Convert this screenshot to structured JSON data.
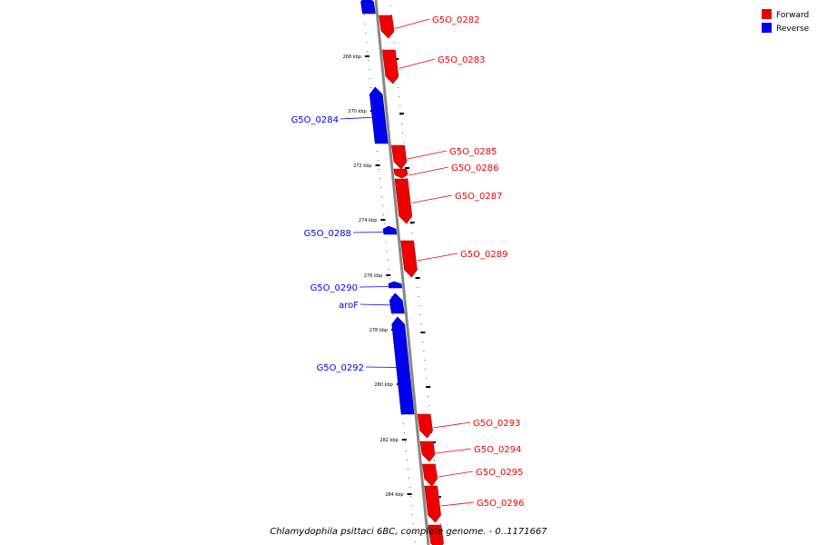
{
  "legend": {
    "items": [
      {
        "label": "Forward",
        "color": "#ee0000"
      },
      {
        "label": "Reverse",
        "color": "#0000ee"
      }
    ]
  },
  "caption": "Chlamydophila psittaci 6BC, complete genome. - 0..1171667",
  "colors": {
    "forward": "#ee0000",
    "reverse": "#0000ee",
    "backbone": "#888888"
  },
  "kbp_ticks": [
    {
      "label": "268 kbp",
      "kb": 268
    },
    {
      "label": "270 kbp",
      "kb": 270
    },
    {
      "label": "272 kbp",
      "kb": 272
    },
    {
      "label": "274 kbp",
      "kb": 274
    },
    {
      "label": "276 kbp",
      "kb": 276
    },
    {
      "label": "278 kbp",
      "kb": 278
    },
    {
      "label": "280 kbp",
      "kb": 280
    },
    {
      "label": "282 kbp",
      "kb": 282
    },
    {
      "label": "284 kbp",
      "kb": 284
    }
  ],
  "genes": [
    {
      "name": "",
      "strand": "reverse"
    },
    {
      "name": "G5O_0282",
      "strand": "forward"
    },
    {
      "name": "G5O_0283",
      "strand": "forward"
    },
    {
      "name": "G5O_0284",
      "strand": "reverse"
    },
    {
      "name": "G5O_0285",
      "strand": "forward"
    },
    {
      "name": "G5O_0286",
      "strand": "forward"
    },
    {
      "name": "G5O_0287",
      "strand": "forward"
    },
    {
      "name": "G5O_0288",
      "strand": "reverse"
    },
    {
      "name": "G5O_0289",
      "strand": "forward"
    },
    {
      "name": "G5O_0290",
      "strand": "reverse"
    },
    {
      "name": "aroF",
      "strand": "reverse"
    },
    {
      "name": "G5O_0292",
      "strand": "reverse"
    },
    {
      "name": "G5O_0293",
      "strand": "forward"
    },
    {
      "name": "G5O_0294",
      "strand": "forward"
    },
    {
      "name": "G5O_0295",
      "strand": "forward"
    },
    {
      "name": "G5O_0296",
      "strand": "forward"
    },
    {
      "name": "",
      "strand": "forward"
    }
  ]
}
